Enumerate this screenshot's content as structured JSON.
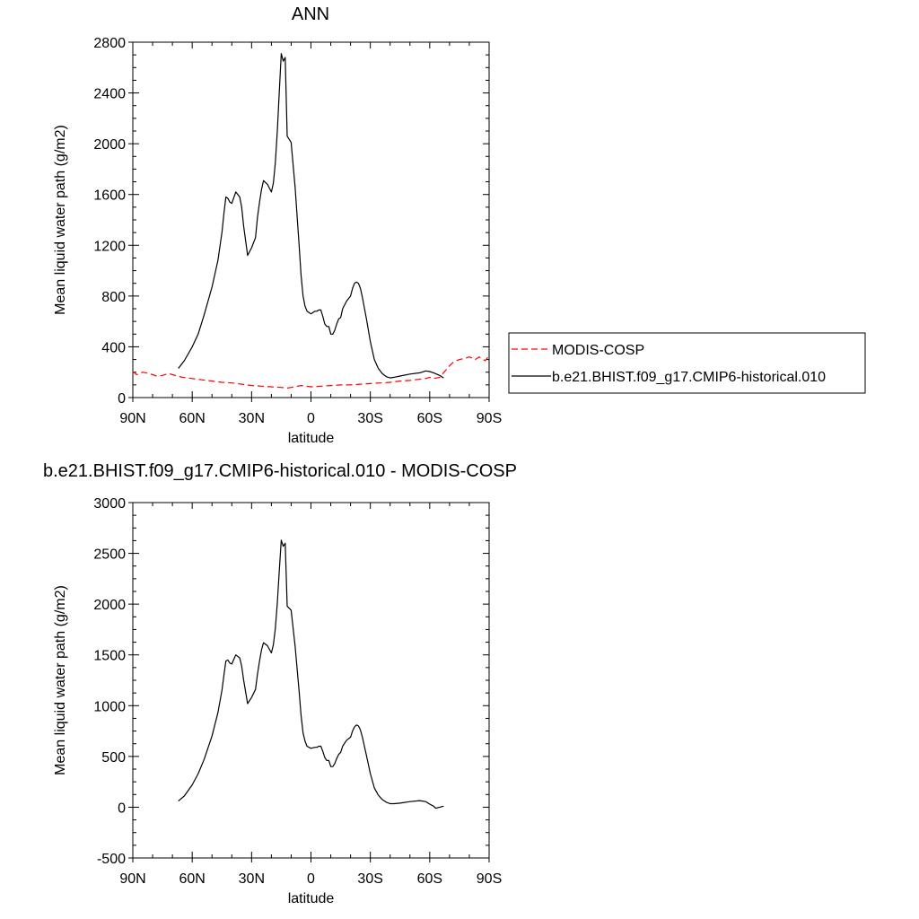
{
  "colors": {
    "model": "#000000",
    "obs": "#ff0000",
    "frame": "#000000"
  },
  "legend": {
    "entries": [
      {
        "label": "MODIS-COSP",
        "style": "dashed",
        "color": "#ff0000"
      },
      {
        "label": "b.e21.BHIST.f09_g17.CMIP6-historical.010",
        "style": "solid",
        "color": "#000000"
      }
    ]
  },
  "chart_data": [
    {
      "type": "line",
      "title": "ANN",
      "xlabel": "latitude",
      "ylabel": "Mean liquid water path (g/m2)",
      "xlim": [
        90,
        -90
      ],
      "ylim": [
        0,
        2800
      ],
      "xticks": [
        90,
        60,
        30,
        0,
        -30,
        -60,
        -90
      ],
      "xtick_labels": [
        "90N",
        "60N",
        "30N",
        "0",
        "30S",
        "60S",
        "90S"
      ],
      "yticks": [
        0,
        400,
        800,
        1200,
        1600,
        2000,
        2400,
        2800
      ],
      "ytick_labels": [
        "0",
        "400",
        "800",
        "1200",
        "1600",
        "2000",
        "2400",
        "2800"
      ],
      "series": [
        {
          "name": "MODIS-COSP",
          "style": "dashed",
          "color": "#ff0000",
          "x": [
            90,
            88,
            85,
            82,
            80,
            78,
            75,
            72,
            70,
            65,
            60,
            55,
            50,
            45,
            40,
            35,
            30,
            25,
            20,
            15,
            12,
            10,
            5,
            0,
            -5,
            -10,
            -15,
            -20,
            -25,
            -30,
            -35,
            -40,
            -45,
            -50,
            -55,
            -58,
            -60,
            -62,
            -65,
            -70,
            -72,
            -75,
            -78,
            -80,
            -83,
            -85,
            -88,
            -90
          ],
          "values": [
            205,
            180,
            200,
            190,
            180,
            170,
            175,
            190,
            180,
            160,
            150,
            140,
            130,
            120,
            115,
            105,
            95,
            90,
            85,
            80,
            75,
            80,
            95,
            85,
            90,
            95,
            100,
            100,
            105,
            110,
            115,
            120,
            130,
            135,
            145,
            150,
            160,
            150,
            160,
            250,
            280,
            300,
            310,
            320,
            300,
            320,
            290,
            330
          ]
        },
        {
          "name": "b.e21.BHIST.f09_g17.CMIP6-historical.010",
          "style": "solid",
          "color": "#000000",
          "x": [
            67,
            64,
            60,
            57,
            54,
            50,
            47,
            45,
            44,
            43,
            42,
            41,
            40,
            38,
            36,
            35,
            34,
            32,
            30,
            28,
            27,
            26,
            25,
            24,
            22,
            20,
            19,
            18,
            17,
            16,
            15,
            14,
            13,
            12,
            10,
            8,
            6,
            5,
            4,
            3,
            2,
            0,
            -2,
            -3,
            -4,
            -5,
            -6,
            -7,
            -8,
            -9,
            -10,
            -11,
            -12,
            -13,
            -14,
            -15,
            -16,
            -18,
            -20,
            -21,
            -22,
            -23,
            -24,
            -25,
            -26,
            -28,
            -30,
            -32,
            -34,
            -36,
            -38,
            -40,
            -42,
            -45,
            -50,
            -55,
            -58,
            -60,
            -62,
            -65,
            -67
          ],
          "values": [
            230,
            290,
            400,
            500,
            650,
            870,
            1080,
            1300,
            1450,
            1580,
            1570,
            1540,
            1530,
            1620,
            1580,
            1500,
            1350,
            1120,
            1180,
            1260,
            1420,
            1540,
            1640,
            1710,
            1680,
            1620,
            1690,
            1850,
            2100,
            2410,
            2710,
            2650,
            2680,
            2060,
            2010,
            1650,
            1200,
            960,
            800,
            720,
            680,
            660,
            680,
            680,
            690,
            690,
            640,
            580,
            560,
            560,
            500,
            500,
            530,
            580,
            620,
            630,
            700,
            760,
            800,
            860,
            900,
            910,
            900,
            860,
            790,
            620,
            440,
            300,
            230,
            190,
            165,
            155,
            160,
            170,
            185,
            195,
            210,
            205,
            195,
            175,
            155
          ]
        }
      ]
    },
    {
      "type": "line",
      "title": "b.e21.BHIST.f09_g17.CMIP6-historical.010 - MODIS-COSP",
      "xlabel": "latitude",
      "ylabel": "Mean liquid water path (g/m2)",
      "xlim": [
        90,
        -90
      ],
      "ylim": [
        -500,
        3000
      ],
      "xticks": [
        90,
        60,
        30,
        0,
        -30,
        -60,
        -90
      ],
      "xtick_labels": [
        "90N",
        "60N",
        "30N",
        "0",
        "30S",
        "60S",
        "90S"
      ],
      "yticks": [
        -500,
        0,
        500,
        1000,
        1500,
        2000,
        2500,
        3000
      ],
      "ytick_labels": [
        "-500",
        "0",
        "500",
        "1000",
        "1500",
        "2000",
        "2500",
        "3000"
      ],
      "series": [
        {
          "style": "solid",
          "color": "#000000",
          "x": [
            67,
            64,
            60,
            57,
            54,
            50,
            47,
            45,
            44,
            43,
            42,
            41,
            40,
            38,
            36,
            35,
            34,
            32,
            30,
            28,
            27,
            26,
            25,
            24,
            22,
            20,
            19,
            18,
            17,
            16,
            15,
            14,
            13,
            12,
            10,
            8,
            6,
            5,
            4,
            3,
            2,
            0,
            -2,
            -3,
            -4,
            -5,
            -6,
            -7,
            -8,
            -9,
            -10,
            -11,
            -12,
            -13,
            -14,
            -15,
            -16,
            -18,
            -20,
            -21,
            -22,
            -23,
            -24,
            -25,
            -26,
            -28,
            -30,
            -32,
            -34,
            -36,
            -38,
            -40,
            -42,
            -45,
            -50,
            -55,
            -58,
            -60,
            -62,
            -63,
            -65,
            -67
          ],
          "values": [
            60,
            110,
            220,
            330,
            470,
            700,
            930,
            1150,
            1300,
            1440,
            1450,
            1420,
            1410,
            1500,
            1470,
            1390,
            1250,
            1020,
            1080,
            1160,
            1310,
            1440,
            1550,
            1620,
            1590,
            1520,
            1600,
            1760,
            2010,
            2330,
            2630,
            2570,
            2600,
            1980,
            1940,
            1580,
            1140,
            900,
            730,
            650,
            600,
            580,
            590,
            590,
            600,
            600,
            550,
            490,
            460,
            460,
            400,
            400,
            430,
            480,
            520,
            540,
            600,
            660,
            690,
            750,
            790,
            810,
            800,
            760,
            690,
            510,
            330,
            190,
            120,
            75,
            50,
            35,
            35,
            40,
            55,
            65,
            55,
            30,
            10,
            -10,
            0,
            10
          ]
        }
      ]
    }
  ]
}
